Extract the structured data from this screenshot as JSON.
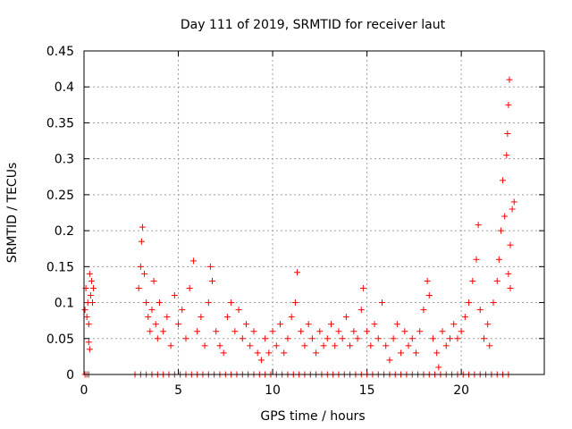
{
  "chart_data": {
    "type": "scatter",
    "title": "Day 111 of 2019, SRMTID for receiver laut",
    "xlabel": "GPS time / hours",
    "ylabel": "SRMTID / TECUs",
    "xlim": [
      0,
      24.4
    ],
    "ylim": [
      0,
      0.45
    ],
    "grid": true,
    "marker": "+",
    "color": "#ff0000",
    "x_ticks": [
      0,
      5,
      10,
      15,
      20
    ],
    "x_tick_labels": [
      "0",
      "5",
      "10",
      "15",
      "20"
    ],
    "y_ticks": [
      0,
      0.05,
      0.1,
      0.15,
      0.2,
      0.25,
      0.3,
      0.35,
      0.4,
      0.45
    ],
    "y_tick_labels": [
      "0",
      "0.05",
      "0.1",
      "0.15",
      "0.2",
      "0.25",
      "0.3",
      "0.35",
      "0.4",
      "0.45"
    ],
    "series": [
      {
        "name": "SRMTID",
        "points": [
          [
            0.05,
            0.09
          ],
          [
            0.1,
            0.12
          ],
          [
            0.15,
            0.08
          ],
          [
            0.2,
            0.1
          ],
          [
            0.25,
            0.07
          ],
          [
            0.3,
            0.14
          ],
          [
            0.35,
            0.11
          ],
          [
            0.4,
            0.13
          ],
          [
            0.45,
            0.1
          ],
          [
            0.5,
            0.12
          ],
          [
            0.3,
            0.035
          ],
          [
            0.25,
            0.045
          ],
          [
            2.9,
            0.12
          ],
          [
            3.0,
            0.15
          ],
          [
            3.05,
            0.185
          ],
          [
            3.1,
            0.205
          ],
          [
            3.2,
            0.14
          ],
          [
            3.3,
            0.1
          ],
          [
            3.4,
            0.08
          ],
          [
            3.5,
            0.06
          ],
          [
            3.6,
            0.09
          ],
          [
            3.7,
            0.13
          ],
          [
            3.8,
            0.07
          ],
          [
            3.9,
            0.05
          ],
          [
            4.0,
            0.1
          ],
          [
            4.2,
            0.06
          ],
          [
            4.4,
            0.08
          ],
          [
            4.6,
            0.04
          ],
          [
            4.8,
            0.11
          ],
          [
            5.0,
            0.07
          ],
          [
            5.2,
            0.09
          ],
          [
            5.4,
            0.05
          ],
          [
            5.6,
            0.12
          ],
          [
            5.8,
            0.158
          ],
          [
            6.0,
            0.06
          ],
          [
            6.2,
            0.08
          ],
          [
            6.4,
            0.04
          ],
          [
            6.6,
            0.1
          ],
          [
            6.7,
            0.15
          ],
          [
            6.8,
            0.13
          ],
          [
            7.0,
            0.06
          ],
          [
            7.2,
            0.04
          ],
          [
            7.4,
            0.03
          ],
          [
            7.6,
            0.08
          ],
          [
            7.8,
            0.1
          ],
          [
            8.0,
            0.06
          ],
          [
            8.2,
            0.09
          ],
          [
            8.4,
            0.05
          ],
          [
            8.6,
            0.07
          ],
          [
            8.8,
            0.04
          ],
          [
            9.0,
            0.06
          ],
          [
            9.2,
            0.03
          ],
          [
            9.4,
            0.02
          ],
          [
            9.6,
            0.05
          ],
          [
            9.8,
            0.03
          ],
          [
            10.0,
            0.06
          ],
          [
            10.2,
            0.04
          ],
          [
            10.4,
            0.07
          ],
          [
            10.6,
            0.03
          ],
          [
            10.8,
            0.05
          ],
          [
            11.0,
            0.08
          ],
          [
            11.2,
            0.1
          ],
          [
            11.3,
            0.142
          ],
          [
            11.5,
            0.06
          ],
          [
            11.7,
            0.04
          ],
          [
            11.9,
            0.07
          ],
          [
            12.1,
            0.05
          ],
          [
            12.3,
            0.03
          ],
          [
            12.5,
            0.06
          ],
          [
            12.7,
            0.04
          ],
          [
            12.9,
            0.05
          ],
          [
            13.1,
            0.07
          ],
          [
            13.3,
            0.04
          ],
          [
            13.5,
            0.06
          ],
          [
            13.7,
            0.05
          ],
          [
            13.9,
            0.08
          ],
          [
            14.1,
            0.04
          ],
          [
            14.3,
            0.06
          ],
          [
            14.5,
            0.05
          ],
          [
            14.7,
            0.09
          ],
          [
            14.8,
            0.12
          ],
          [
            15.0,
            0.06
          ],
          [
            15.2,
            0.04
          ],
          [
            15.4,
            0.07
          ],
          [
            15.6,
            0.05
          ],
          [
            15.8,
            0.1
          ],
          [
            16.0,
            0.04
          ],
          [
            16.2,
            0.02
          ],
          [
            16.4,
            0.05
          ],
          [
            16.6,
            0.07
          ],
          [
            16.8,
            0.03
          ],
          [
            17.0,
            0.06
          ],
          [
            17.2,
            0.04
          ],
          [
            17.4,
            0.05
          ],
          [
            17.6,
            0.03
          ],
          [
            17.8,
            0.06
          ],
          [
            18.0,
            0.09
          ],
          [
            18.2,
            0.13
          ],
          [
            18.3,
            0.11
          ],
          [
            18.5,
            0.05
          ],
          [
            18.7,
            0.03
          ],
          [
            18.8,
            0.01
          ],
          [
            19.0,
            0.06
          ],
          [
            19.2,
            0.04
          ],
          [
            19.4,
            0.05
          ],
          [
            19.6,
            0.07
          ],
          [
            19.8,
            0.05
          ],
          [
            20.0,
            0.06
          ],
          [
            20.2,
            0.08
          ],
          [
            20.4,
            0.1
          ],
          [
            20.6,
            0.13
          ],
          [
            20.8,
            0.16
          ],
          [
            20.9,
            0.208
          ],
          [
            21.0,
            0.09
          ],
          [
            21.2,
            0.05
          ],
          [
            21.4,
            0.07
          ],
          [
            21.5,
            0.04
          ],
          [
            21.7,
            0.1
          ],
          [
            21.9,
            0.13
          ],
          [
            22.0,
            0.16
          ],
          [
            22.1,
            0.2
          ],
          [
            22.2,
            0.27
          ],
          [
            22.3,
            0.22
          ],
          [
            22.4,
            0.305
          ],
          [
            22.45,
            0.335
          ],
          [
            22.5,
            0.375
          ],
          [
            22.55,
            0.41
          ],
          [
            22.6,
            0.18
          ],
          [
            22.7,
            0.23
          ],
          [
            22.8,
            0.24
          ],
          [
            22.5,
            0.14
          ],
          [
            22.6,
            0.12
          ],
          [
            0.05,
            0
          ],
          [
            0.15,
            0
          ],
          [
            0.25,
            0
          ],
          [
            2.7,
            0
          ],
          [
            3.0,
            0
          ],
          [
            3.3,
            0
          ],
          [
            3.6,
            0
          ],
          [
            3.9,
            0
          ],
          [
            4.2,
            0
          ],
          [
            4.5,
            0
          ],
          [
            4.8,
            0
          ],
          [
            5.1,
            0
          ],
          [
            5.4,
            0
          ],
          [
            5.7,
            0
          ],
          [
            6.0,
            0
          ],
          [
            6.3,
            0
          ],
          [
            6.6,
            0
          ],
          [
            6.9,
            0
          ],
          [
            7.2,
            0
          ],
          [
            7.5,
            0
          ],
          [
            7.8,
            0
          ],
          [
            8.1,
            0
          ],
          [
            8.4,
            0
          ],
          [
            8.7,
            0
          ],
          [
            9.0,
            0
          ],
          [
            9.3,
            0
          ],
          [
            9.6,
            0
          ],
          [
            9.9,
            0
          ],
          [
            10.2,
            0
          ],
          [
            10.5,
            0
          ],
          [
            10.8,
            0
          ],
          [
            11.1,
            0
          ],
          [
            11.4,
            0
          ],
          [
            11.7,
            0
          ],
          [
            12.0,
            0
          ],
          [
            12.3,
            0
          ],
          [
            12.6,
            0
          ],
          [
            12.9,
            0
          ],
          [
            13.2,
            0
          ],
          [
            13.5,
            0
          ],
          [
            13.8,
            0
          ],
          [
            14.1,
            0
          ],
          [
            14.4,
            0
          ],
          [
            14.7,
            0
          ],
          [
            15.0,
            0
          ],
          [
            15.3,
            0
          ],
          [
            15.6,
            0
          ],
          [
            15.9,
            0
          ],
          [
            16.2,
            0
          ],
          [
            16.5,
            0
          ],
          [
            16.8,
            0
          ],
          [
            17.1,
            0
          ],
          [
            17.4,
            0
          ],
          [
            17.7,
            0
          ],
          [
            18.0,
            0
          ],
          [
            18.3,
            0
          ],
          [
            18.6,
            0
          ],
          [
            18.9,
            0
          ],
          [
            19.2,
            0
          ],
          [
            19.5,
            0
          ],
          [
            19.8,
            0
          ],
          [
            20.1,
            0
          ],
          [
            20.4,
            0
          ],
          [
            20.7,
            0
          ],
          [
            21.0,
            0
          ],
          [
            21.3,
            0
          ],
          [
            21.6,
            0
          ],
          [
            21.9,
            0
          ],
          [
            22.2,
            0
          ],
          [
            22.5,
            0
          ]
        ]
      }
    ]
  }
}
